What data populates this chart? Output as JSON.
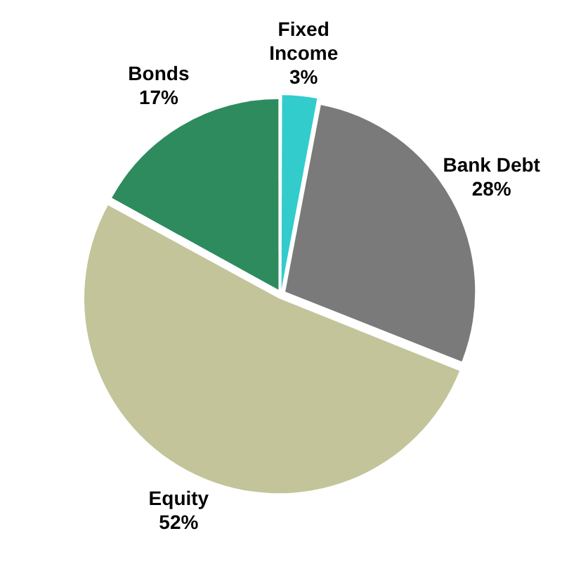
{
  "chart_data": {
    "type": "pie",
    "categories": [
      "Fixed Income",
      "Bank Debt",
      "Equity",
      "Bonds"
    ],
    "values": [
      3,
      28,
      52,
      17
    ],
    "value_labels": [
      "3%",
      "28%",
      "52%",
      "17%"
    ],
    "colors": [
      "#33cccc",
      "#7a7a7a",
      "#c4c49a",
      "#2e8b5e"
    ],
    "legend": false
  }
}
